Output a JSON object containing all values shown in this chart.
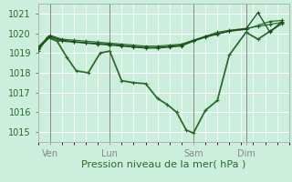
{
  "background_color": "#cceedd",
  "grid_color": "#ffffff",
  "line_color": "#2d6a2d",
  "ylim": [
    1014.5,
    1021.5
  ],
  "xlim": [
    0,
    10.5
  ],
  "yticks": [
    1015,
    1016,
    1017,
    1018,
    1019,
    1020,
    1021
  ],
  "xlabel": "Pression niveau de la mer( hPa )",
  "xlabel_fontsize": 8,
  "tick_fontsize": 7,
  "day_labels": [
    "Ven",
    "Lun",
    "Sam",
    "Dim"
  ],
  "day_positions": [
    0.5,
    3.0,
    6.5,
    8.7
  ],
  "vline_positions": [
    0.5,
    3.0,
    6.5,
    8.7
  ],
  "series": [
    {
      "x": [
        0.0,
        0.4,
        0.8,
        1.2,
        1.6,
        2.1,
        2.6,
        3.0,
        3.5,
        4.0,
        4.5,
        5.0,
        5.4,
        5.8,
        6.2,
        6.5,
        7.0,
        7.5,
        8.0,
        8.7,
        9.2,
        9.7,
        10.2
      ],
      "y": [
        1019.1,
        1019.8,
        1019.6,
        1018.8,
        1018.1,
        1018.0,
        1019.0,
        1019.1,
        1017.6,
        1017.5,
        1017.45,
        1016.7,
        1016.4,
        1016.0,
        1015.1,
        1014.95,
        1016.1,
        1016.6,
        1018.9,
        1020.05,
        1019.7,
        1020.1,
        1020.5
      ],
      "lw": 1.3,
      "color": "#2d6a2d"
    },
    {
      "x": [
        0.0,
        0.5,
        1.0,
        1.5,
        2.0,
        2.5,
        3.0,
        3.5,
        4.0,
        4.5,
        5.0,
        5.5,
        6.0,
        6.5,
        7.0,
        7.5,
        8.0,
        8.7,
        9.2,
        9.7,
        10.2
      ],
      "y": [
        1019.3,
        1019.9,
        1019.7,
        1019.65,
        1019.6,
        1019.55,
        1019.5,
        1019.45,
        1019.4,
        1019.35,
        1019.35,
        1019.4,
        1019.45,
        1019.65,
        1019.85,
        1020.05,
        1020.15,
        1020.25,
        1020.35,
        1020.45,
        1020.55
      ],
      "lw": 0.9,
      "color": "#2d6a2d"
    },
    {
      "x": [
        0.0,
        0.5,
        1.0,
        1.5,
        2.0,
        2.5,
        3.0,
        3.5,
        4.0,
        4.5,
        5.0,
        5.5,
        6.0,
        6.5,
        7.0,
        7.5,
        8.0,
        8.7,
        9.2,
        9.7,
        10.2
      ],
      "y": [
        1019.2,
        1019.8,
        1019.6,
        1019.55,
        1019.5,
        1019.45,
        1019.4,
        1019.35,
        1019.3,
        1019.25,
        1019.25,
        1019.3,
        1019.35,
        1019.6,
        1019.8,
        1019.95,
        1020.1,
        1020.2,
        1020.4,
        1020.6,
        1020.65
      ],
      "lw": 0.9,
      "color": "#2d6a2d"
    },
    {
      "x": [
        0.0,
        0.5,
        1.0,
        1.5,
        2.0,
        2.5,
        3.0,
        3.5,
        4.0,
        4.5,
        5.0,
        5.5,
        6.0,
        6.5,
        7.0,
        7.5,
        8.0,
        8.7,
        9.2,
        9.7,
        10.2
      ],
      "y": [
        1019.25,
        1019.85,
        1019.65,
        1019.58,
        1019.52,
        1019.48,
        1019.45,
        1019.38,
        1019.32,
        1019.28,
        1019.28,
        1019.33,
        1019.4,
        1019.62,
        1019.82,
        1019.98,
        1020.12,
        1020.22,
        1021.05,
        1020.05,
        1020.6
      ],
      "lw": 0.9,
      "color": "#1a4a1a"
    }
  ]
}
